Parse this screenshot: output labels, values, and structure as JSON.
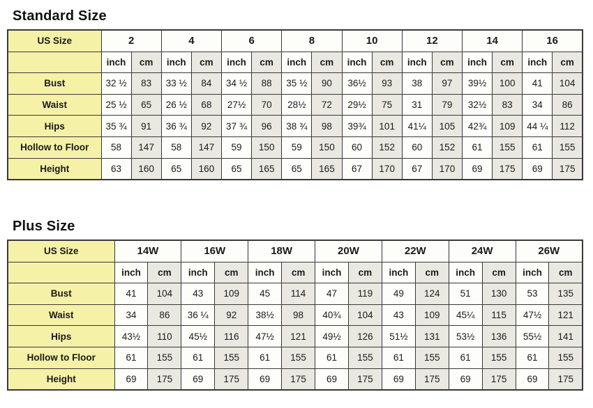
{
  "colors": {
    "label_bg": "#f5f1a6",
    "inch_bg": "#fdfdfa",
    "cm_bg": "#e9e8e1",
    "border": "#383838",
    "text": "#1a1a1a",
    "title": "#111111"
  },
  "chart_data": [
    {
      "type": "table",
      "title": "Standard Size",
      "corner_label": "US Size",
      "unit_labels": [
        "inch",
        "cm"
      ],
      "sizes": [
        "2",
        "4",
        "6",
        "8",
        "10",
        "12",
        "14",
        "16"
      ],
      "rows": [
        {
          "label": "Bust",
          "inch": [
            "32 ½",
            "33 ½",
            "34 ½",
            "35 ½",
            "36½",
            "38",
            "39½",
            "41"
          ],
          "cm": [
            "83",
            "84",
            "88",
            "90",
            "93",
            "97",
            "100",
            "104"
          ]
        },
        {
          "label": "Waist",
          "inch": [
            "25 ½",
            "26 ½",
            "27½",
            "28½",
            "29½",
            "31",
            "32½",
            "34"
          ],
          "cm": [
            "65",
            "68",
            "70",
            "72",
            "75",
            "79",
            "83",
            "86"
          ]
        },
        {
          "label": "Hips",
          "inch": [
            "35 ¾",
            "36 ¾",
            "37 ¾",
            "38 ¾",
            "39¾",
            "41¼",
            "42¾",
            "44 ¼"
          ],
          "cm": [
            "91",
            "92",
            "96",
            "98",
            "101",
            "105",
            "109",
            "112"
          ]
        },
        {
          "label": "Hollow to Floor",
          "inch": [
            "58",
            "58",
            "59",
            "59",
            "60",
            "60",
            "61",
            "61"
          ],
          "cm": [
            "147",
            "147",
            "150",
            "150",
            "152",
            "152",
            "155",
            "155"
          ]
        },
        {
          "label": "Height",
          "inch": [
            "63",
            "65",
            "65",
            "65",
            "67",
            "67",
            "69",
            "69"
          ],
          "cm": [
            "160",
            "160",
            "165",
            "165",
            "170",
            "170",
            "175",
            "175"
          ]
        }
      ]
    },
    {
      "type": "table",
      "title": "Plus Size",
      "corner_label": "US Size",
      "unit_labels": [
        "inch",
        "cm"
      ],
      "sizes": [
        "14W",
        "16W",
        "18W",
        "20W",
        "22W",
        "24W",
        "26W"
      ],
      "rows": [
        {
          "label": "Bust",
          "inch": [
            "41",
            "43",
            "45",
            "47",
            "49",
            "51",
            "53"
          ],
          "cm": [
            "104",
            "109",
            "114",
            "119",
            "124",
            "130",
            "135"
          ]
        },
        {
          "label": "Waist",
          "inch": [
            "34",
            "36 ¼",
            "38½",
            "40¾",
            "43",
            "45¼",
            "47½"
          ],
          "cm": [
            "86",
            "92",
            "98",
            "104",
            "109",
            "115",
            "121"
          ]
        },
        {
          "label": "Hips",
          "inch": [
            "43½",
            "45½",
            "47½",
            "49½",
            "51½",
            "53½",
            "55½"
          ],
          "cm": [
            "110",
            "116",
            "121",
            "126",
            "131",
            "136",
            "141"
          ]
        },
        {
          "label": "Hollow to Floor",
          "inch": [
            "61",
            "61",
            "61",
            "61",
            "61",
            "61",
            "61"
          ],
          "cm": [
            "155",
            "155",
            "155",
            "155",
            "155",
            "155",
            "155"
          ]
        },
        {
          "label": "Height",
          "inch": [
            "69",
            "69",
            "69",
            "69",
            "69",
            "69",
            "69"
          ],
          "cm": [
            "175",
            "175",
            "175",
            "175",
            "175",
            "175",
            "175"
          ]
        }
      ]
    }
  ]
}
